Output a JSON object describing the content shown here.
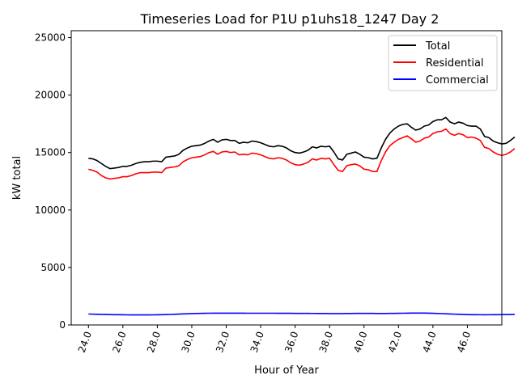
{
  "chart_data": {
    "type": "line",
    "title": "Timeseries Load for P1U p1uhs18_1247  Day 2",
    "xlabel": "Hour of Year",
    "ylabel": "kW total",
    "xlim": [
      23.0,
      48.0
    ],
    "ylim": [
      0,
      25600
    ],
    "xticks": [
      24,
      26,
      28,
      30,
      32,
      34,
      36,
      38,
      40,
      42,
      44,
      46
    ],
    "xtick_labels": [
      "24.0",
      "26.0",
      "28.0",
      "30.0",
      "32.0",
      "34.0",
      "36.0",
      "38.0",
      "40.0",
      "42.0",
      "44.0",
      "46.0"
    ],
    "yticks": [
      0,
      5000,
      10000,
      15000,
      20000,
      25000
    ],
    "ytick_labels": [
      "0",
      "5000",
      "10000",
      "15000",
      "20000",
      "25000"
    ],
    "legend_position": "top-right",
    "x_start": 24.0,
    "x_step": 0.25,
    "series": [
      {
        "name": "Total",
        "color": "#000000",
        "values": [
          14500,
          14450,
          14300,
          14050,
          13800,
          13600,
          13650,
          13700,
          13800,
          13800,
          13900,
          14050,
          14150,
          14200,
          14200,
          14250,
          14250,
          14200,
          14600,
          14650,
          14700,
          14850,
          15200,
          15400,
          15550,
          15600,
          15650,
          15800,
          16000,
          16150,
          15900,
          16100,
          16150,
          16050,
          16050,
          15800,
          15900,
          15850,
          16000,
          15950,
          15850,
          15700,
          15550,
          15500,
          15600,
          15550,
          15400,
          15150,
          15000,
          14950,
          15050,
          15200,
          15500,
          15400,
          15550,
          15500,
          15550,
          15050,
          14450,
          14350,
          14850,
          14950,
          15050,
          14850,
          14600,
          14550,
          14450,
          14500,
          15400,
          16150,
          16700,
          17050,
          17300,
          17450,
          17500,
          17200,
          16950,
          17050,
          17300,
          17400,
          17700,
          17850,
          17850,
          18050,
          17650,
          17500,
          17650,
          17550,
          17350,
          17300,
          17300,
          17050,
          16400,
          16300,
          16000,
          15850,
          15750,
          15800,
          16050,
          16350
        ]
      },
      {
        "name": "Residential",
        "color": "#ff0000",
        "values": [
          13550,
          13450,
          13300,
          13000,
          12800,
          12700,
          12750,
          12800,
          12900,
          12900,
          13000,
          13150,
          13250,
          13250,
          13250,
          13300,
          13300,
          13250,
          13650,
          13700,
          13750,
          13850,
          14200,
          14400,
          14550,
          14600,
          14650,
          14800,
          15000,
          15100,
          14850,
          15050,
          15100,
          15000,
          15050,
          14800,
          14850,
          14800,
          14950,
          14900,
          14800,
          14650,
          14500,
          14450,
          14550,
          14500,
          14350,
          14100,
          13950,
          13900,
          14000,
          14150,
          14450,
          14350,
          14500,
          14450,
          14500,
          13950,
          13450,
          13350,
          13850,
          13950,
          14000,
          13850,
          13550,
          13500,
          13350,
          13350,
          14300,
          15050,
          15600,
          15900,
          16150,
          16300,
          16450,
          16200,
          15900,
          16000,
          16250,
          16350,
          16650,
          16800,
          16850,
          17050,
          16650,
          16500,
          16650,
          16550,
          16300,
          16350,
          16250,
          16050,
          15450,
          15350,
          15050,
          14850,
          14750,
          14850,
          15050,
          15350
        ]
      },
      {
        "name": "Commercial",
        "color": "#0000ff",
        "values": [
          950,
          940,
          930,
          920,
          910,
          900,
          895,
          890,
          885,
          880,
          878,
          876,
          875,
          876,
          878,
          880,
          885,
          890,
          900,
          915,
          930,
          945,
          960,
          975,
          990,
          1000,
          1010,
          1015,
          1020,
          1022,
          1024,
          1025,
          1025,
          1024,
          1023,
          1022,
          1021,
          1020,
          1020,
          1020,
          1020,
          1020,
          1020,
          1020,
          1018,
          1016,
          1014,
          1012,
          1010,
          1008,
          1006,
          1004,
          1002,
          1000,
          998,
          995,
          992,
          990,
          990,
          990,
          995,
          1000,
          1005,
          1010,
          1010,
          1010,
          1005,
          1000,
          1000,
          1000,
          1005,
          1010,
          1015,
          1020,
          1025,
          1030,
          1035,
          1035,
          1030,
          1025,
          1015,
          1000,
          985,
          970,
          955,
          940,
          925,
          910,
          900,
          895,
          890,
          888,
          887,
          888,
          890,
          893,
          897,
          902,
          907,
          912
        ]
      }
    ]
  }
}
